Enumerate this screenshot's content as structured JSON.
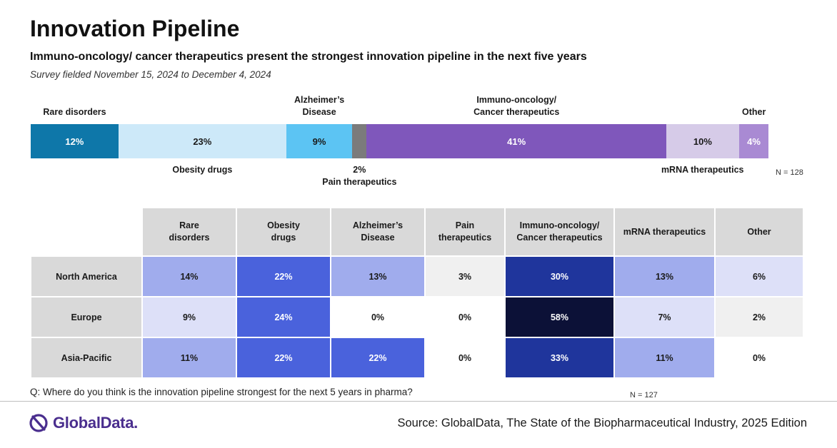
{
  "header": {
    "title": "Innovation Pipeline",
    "subtitle": "Immuno-oncology/ cancer therapeutics present the strongest innovation pipeline in the next five years",
    "fielded": "Survey fielded November 15, 2024 to December 4, 2024"
  },
  "chart_data": [
    {
      "type": "bar",
      "orientation": "horizontal-stacked",
      "categories": [
        "Rare disorders",
        "Obesity drugs",
        "Alzheimer’s Disease",
        "Pain therapeutics",
        "Immuno-oncology/ Cancer therapeutics",
        "mRNA therapeutics",
        "Other"
      ],
      "values": [
        12,
        23,
        9,
        2,
        41,
        10,
        4
      ],
      "value_labels": [
        "12%",
        "23%",
        "9%",
        "2%",
        "41%",
        "10%",
        "4%"
      ],
      "colors": [
        "#0e77a9",
        "#cde9f9",
        "#5cc4f3",
        "#7b7b7b",
        "#7f57bb",
        "#d6cbe8",
        "#a98ad3"
      ],
      "text_colors": [
        "#ffffff",
        "#1a1a1a",
        "#1a1a1a",
        "#ffffff",
        "#ffffff",
        "#1a1a1a",
        "#ffffff"
      ],
      "label_lines": [
        [
          "Rare disorders"
        ],
        [
          "Obesity drugs"
        ],
        [
          "Alzheimer’s",
          "Disease"
        ],
        [
          "Pain therapeutics"
        ],
        [
          "Immuno-oncology/",
          "Cancer therapeutics"
        ],
        [
          "mRNA therapeutics"
        ],
        [
          "Other"
        ]
      ],
      "label_positions": [
        "above",
        "below",
        "above",
        "below",
        "above",
        "below",
        "above"
      ],
      "n": "N = 128"
    },
    {
      "type": "heatmap",
      "columns": [
        [
          "Rare",
          "disorders"
        ],
        [
          "Obesity",
          "drugs"
        ],
        [
          "Alzheimer’s",
          "Disease"
        ],
        [
          "Pain",
          "therapeutics"
        ],
        [
          "Immuno-oncology/",
          "Cancer therapeutics"
        ],
        [
          "mRNA therapeutics"
        ],
        [
          "Other"
        ]
      ],
      "rows": [
        "North America",
        "Europe",
        "Asia-Pacific"
      ],
      "values": [
        [
          14,
          22,
          13,
          3,
          30,
          13,
          6
        ],
        [
          9,
          24,
          0,
          0,
          58,
          7,
          2
        ],
        [
          11,
          22,
          22,
          0,
          33,
          11,
          0
        ]
      ],
      "display": [
        [
          "14%",
          "22%",
          "13%",
          "3%",
          "30%",
          "13%",
          "6%"
        ],
        [
          "9%",
          "24%",
          "0%",
          "0%",
          "58%",
          "7%",
          "2%"
        ],
        [
          "11%",
          "22%",
          "22%",
          "0%",
          "33%",
          "11%",
          "0%"
        ]
      ],
      "cell_colors": [
        [
          "#a0aced",
          "#4a62dc",
          "#a0aced",
          "#f0f0f0",
          "#1f359c",
          "#a0aced",
          "#dde0f8"
        ],
        [
          "#dde0f8",
          "#4a62dc",
          "#ffffff",
          "#ffffff",
          "#0c1137",
          "#dde0f8",
          "#f0f0f0"
        ],
        [
          "#a0aced",
          "#4a62dc",
          "#4a62dc",
          "#ffffff",
          "#1f359c",
          "#a0aced",
          "#ffffff"
        ]
      ],
      "text_colors": [
        [
          "#1a1a1a",
          "#ffffff",
          "#1a1a1a",
          "#1a1a1a",
          "#ffffff",
          "#1a1a1a",
          "#1a1a1a"
        ],
        [
          "#1a1a1a",
          "#ffffff",
          "#1a1a1a",
          "#1a1a1a",
          "#ffffff",
          "#1a1a1a",
          "#1a1a1a"
        ],
        [
          "#1a1a1a",
          "#ffffff",
          "#ffffff",
          "#1a1a1a",
          "#ffffff",
          "#1a1a1a",
          "#1a1a1a"
        ]
      ]
    }
  ],
  "footer": {
    "question": "Q: Where do you think is the innovation pipeline strongest for the next 5 years in pharma?",
    "n_bottom": "N = 127",
    "logo_text": "GlobalData.",
    "logo_icon": "globaldata-logo-icon",
    "source": "Source: GlobalData, The State of the Biopharmaceutical Industry, 2025 Edition"
  }
}
